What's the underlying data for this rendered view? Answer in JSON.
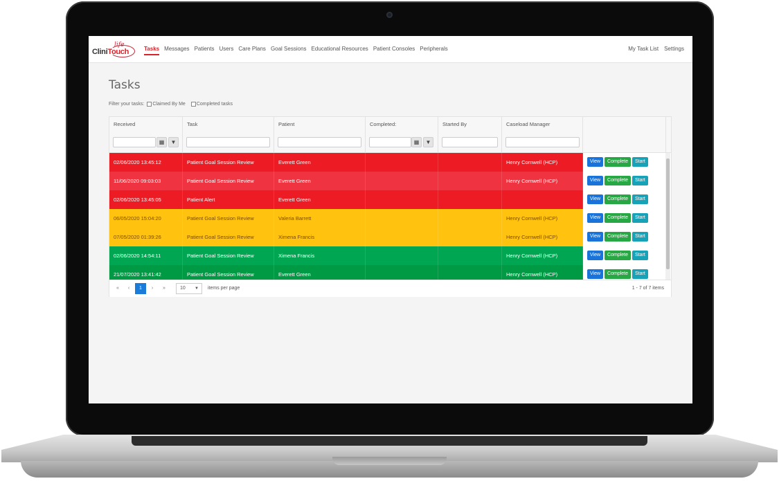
{
  "app": {
    "logo_brand_a": "Clini",
    "logo_brand_b": "Touch",
    "logo_life": "life"
  },
  "nav": {
    "items": [
      "Tasks",
      "Messages",
      "Patients",
      "Users",
      "Care Plans",
      "Goal Sessions",
      "Educational Resources",
      "Patient Consoles",
      "Peripherals"
    ],
    "active_index": 0,
    "right": [
      "My Task List",
      "Settings"
    ]
  },
  "page": {
    "title": "Tasks",
    "filter_label": "Filter your tasks:",
    "filter_options": [
      "Claimed By Me",
      "Completed tasks"
    ]
  },
  "colors": {
    "red": "#ed1c24",
    "red_alt": "#ef3340",
    "amber": "#ffc20e",
    "green": "#00a651",
    "green_alt": "#009944",
    "red_text": "#ffffff",
    "amber_text": "#7a4b00",
    "green_text": "#ffffff"
  },
  "table": {
    "columns": [
      "Received",
      "Task",
      "Patient",
      "Completed:",
      "Started By",
      "Caseload Manager"
    ],
    "action_labels": {
      "view": "View",
      "complete": "Complete",
      "start": "Start"
    },
    "rows": [
      {
        "received": "02/06/2020 13:45:12",
        "task": "Patient Goal Session Review",
        "patient": "Everett Green",
        "completed": "",
        "started_by": "",
        "manager": "Henry Cornwell (HCP)",
        "status": "red"
      },
      {
        "received": "11/06/2020 09:03:03",
        "task": "Patient Goal Session Review",
        "patient": "Everett Green",
        "completed": "",
        "started_by": "",
        "manager": "Henry Cornwell (HCP)",
        "status": "red_alt"
      },
      {
        "received": "02/06/2020 13:45:05",
        "task": "Patient Alert",
        "patient": "Everett Green",
        "completed": "",
        "started_by": "",
        "manager": "",
        "status": "red"
      },
      {
        "received": "06/05/2020 15:04:20",
        "task": "Patient Goal Session Review",
        "patient": "Valeria Barrett",
        "completed": "",
        "started_by": "",
        "manager": "Henry Cornwell (HCP)",
        "status": "amber"
      },
      {
        "received": "07/05/2020 01:39:26",
        "task": "Patient Goal Session Review",
        "patient": "Ximena Francis",
        "completed": "",
        "started_by": "",
        "manager": "Henry Cornwell (HCP)",
        "status": "amber"
      },
      {
        "received": "02/06/2020 14:54:11",
        "task": "Patient Goal Session Review",
        "patient": "Ximena Francis",
        "completed": "",
        "started_by": "",
        "manager": "Henry Cornwell (HCP)",
        "status": "green"
      },
      {
        "received": "21/07/2020 13:41:42",
        "task": "Patient Goal Session Review",
        "patient": "Everett Green",
        "completed": "",
        "started_by": "",
        "manager": "Henry Cornwell (HCP)",
        "status": "green_alt"
      }
    ]
  },
  "pager": {
    "first": "«",
    "prev": "‹",
    "current": "1",
    "next": "›",
    "last": "»",
    "page_size": "10",
    "items_per_page": "items per page",
    "count": "1 - 7 of 7 items"
  },
  "icons": {
    "calendar": "calendar-icon",
    "filter": "filter-icon",
    "calendar_glyph": "▦",
    "filter_glyph": "▼"
  }
}
